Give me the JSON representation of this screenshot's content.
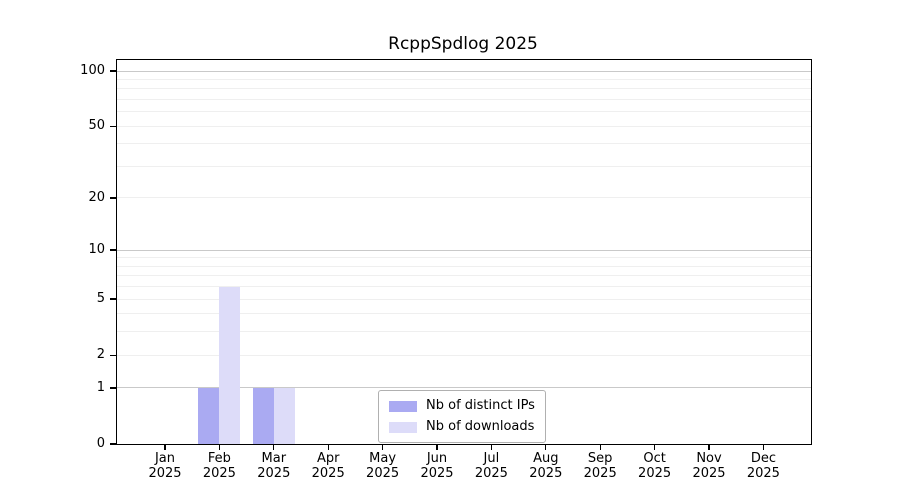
{
  "title": "RcppSpdlog 2025",
  "chart_data": {
    "type": "bar",
    "title": "RcppSpdlog 2025",
    "categories": [
      "Jan",
      "Feb",
      "Mar",
      "Apr",
      "May",
      "Jun",
      "Jul",
      "Aug",
      "Sep",
      "Oct",
      "Nov",
      "Dec"
    ],
    "x_tick_year": "2025",
    "series": [
      {
        "name": "Nb of distinct IPs",
        "color": "#aaaaf2",
        "values": [
          0,
          1,
          1,
          0,
          0,
          0,
          0,
          0,
          0,
          0,
          0,
          0
        ]
      },
      {
        "name": "Nb of downloads",
        "color": "#dddcf9",
        "values": [
          0,
          6,
          1,
          0,
          0,
          0,
          0,
          0,
          0,
          0,
          0,
          0
        ]
      }
    ],
    "y_axis": {
      "scale": "log10(1+y)",
      "ticks": [
        0,
        1,
        2,
        5,
        10,
        20,
        50,
        100
      ],
      "top_value": 115
    },
    "grid": {
      "major_values": [
        1,
        10,
        100
      ],
      "minor_values": [
        2,
        3,
        4,
        5,
        6,
        7,
        8,
        9,
        20,
        30,
        40,
        50,
        60,
        70,
        80,
        90
      ],
      "major_color": "#c9c9c9",
      "minor_color": "#efefef"
    },
    "legend": {
      "location": "lower center",
      "entries": [
        "Nb of distinct IPs",
        "Nb of downloads"
      ]
    }
  },
  "colors": {
    "background": "#ffffff",
    "axis": "#000000",
    "bar_distinct_ips": "#aaaaf2",
    "bar_downloads": "#dddcf9",
    "legend_border": "#b0b0b0"
  }
}
